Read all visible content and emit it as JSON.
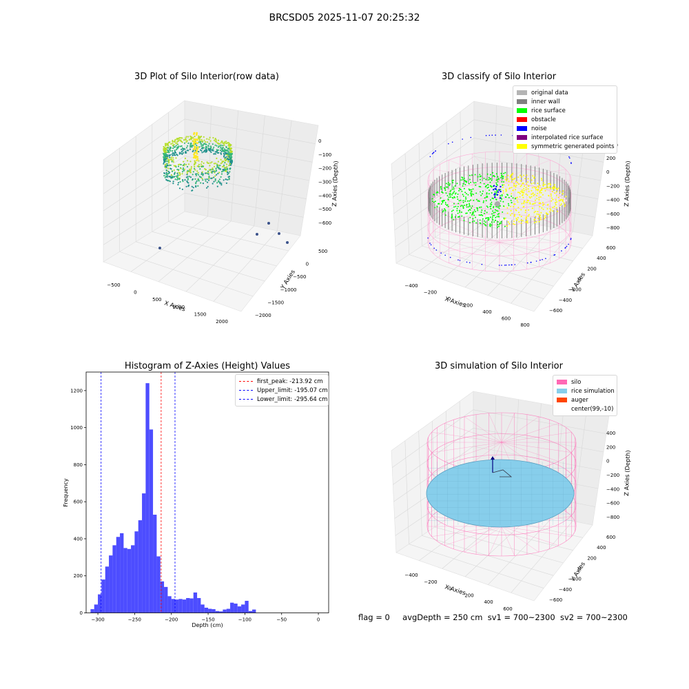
{
  "suptitle": "BRCSD05 2025-11-07 20:25:32",
  "footer": {
    "flag": "flag = 0",
    "avgDepth": "avgDepth = 250 cm",
    "sv1": "sv1 = 700~2300",
    "sv2": "sv2 = 700~2300"
  },
  "chart_data": [
    {
      "type": "scatter",
      "title": "3D Plot of Silo Interior(row data)",
      "xlabel": "X Axies",
      "ylabel": "Y Axies",
      "zlabel": "Z Axies (Depth)",
      "x_ticks": [
        "−500",
        "0",
        "500",
        "1000",
        "1500",
        "2000"
      ],
      "y_ticks": [
        "−2000",
        "−1500",
        "−1000",
        "−500",
        "0",
        "500"
      ],
      "z_ticks": [
        "−600",
        "−500",
        "−400",
        "−300",
        "−200",
        "−100",
        "0"
      ],
      "outlier_points": 5
    },
    {
      "type": "scatter",
      "title": "3D classify of Silo Interior",
      "xlabel": "X Axies",
      "ylabel": "Y Axies",
      "zlabel": "Z Axies (Depth)",
      "x_ticks": [
        "−400",
        "−200",
        "0",
        "200",
        "400",
        "600",
        "800"
      ],
      "y_ticks": [
        "−600",
        "−400",
        "−200",
        "0",
        "200",
        "400",
        "600"
      ],
      "z_ticks": [
        "−800",
        "−600",
        "−400",
        "−200",
        "0",
        "200"
      ],
      "z_clipped_tick": "00",
      "legend": [
        {
          "label": "original data",
          "color": "#b4b4b4"
        },
        {
          "label": "inner wall",
          "color": "#808080"
        },
        {
          "label": "rice surface",
          "color": "#00ff00"
        },
        {
          "label": "obstacle",
          "color": "#ff0000"
        },
        {
          "label": "noise",
          "color": "#0000ff"
        },
        {
          "label": "interpolated rice surface",
          "color": "#800080"
        },
        {
          "label": "symmetric generated points",
          "color": "#ffff00"
        }
      ]
    },
    {
      "type": "bar",
      "title": "Histogram of Z-Axies (Height) Values",
      "xlabel": "Depth (cm)",
      "ylabel": "Frequency",
      "xlim": [
        -316,
        14
      ],
      "ylim": [
        0,
        1300
      ],
      "x_ticks": [
        -300,
        -250,
        -200,
        -150,
        -100,
        -50,
        0
      ],
      "y_ticks": [
        0,
        200,
        400,
        600,
        800,
        1000,
        1200
      ],
      "bin_start": -310,
      "bin_width": 5,
      "values": [
        20,
        45,
        100,
        180,
        250,
        310,
        365,
        410,
        430,
        350,
        345,
        365,
        440,
        500,
        645,
        1240,
        990,
        530,
        305,
        170,
        140,
        90,
        75,
        72,
        75,
        72,
        80,
        78,
        110,
        80,
        45,
        28,
        22,
        20,
        10,
        8,
        18,
        22,
        55,
        50,
        35,
        45,
        65,
        10,
        18
      ],
      "bar_color": "#4d4dff",
      "lines": [
        {
          "label": "first_peak: -213.92 cm",
          "x": -213.92,
          "color": "#ff0000"
        },
        {
          "label": "Upper_limit: -195.07 cm",
          "x": -195.07,
          "color": "#0000ff"
        },
        {
          "label": "Lower_limit: -295.64 cm",
          "x": -295.64,
          "color": "#0000ff"
        }
      ]
    },
    {
      "type": "area",
      "title": "3D simulation of Silo Interior",
      "xlabel": "X Axies",
      "ylabel": "Y Axies",
      "zlabel": "Z Axies (Depth)",
      "x_ticks": [
        "−400",
        "−200",
        "0",
        "200",
        "400",
        "600"
      ],
      "y_ticks": [
        "−600",
        "−400",
        "−200",
        "0",
        "200",
        "400",
        "600"
      ],
      "z_ticks": [
        "−800",
        "−600",
        "−400",
        "−200",
        "0",
        "200",
        "400"
      ],
      "legend": [
        {
          "label": "silo",
          "color": "#ff69b4"
        },
        {
          "label": "rice simulation",
          "color": "#87ceeb"
        },
        {
          "label": "auger",
          "color": "#ff4500"
        },
        {
          "label": "center(99,-10)",
          "color": ""
        }
      ]
    }
  ]
}
